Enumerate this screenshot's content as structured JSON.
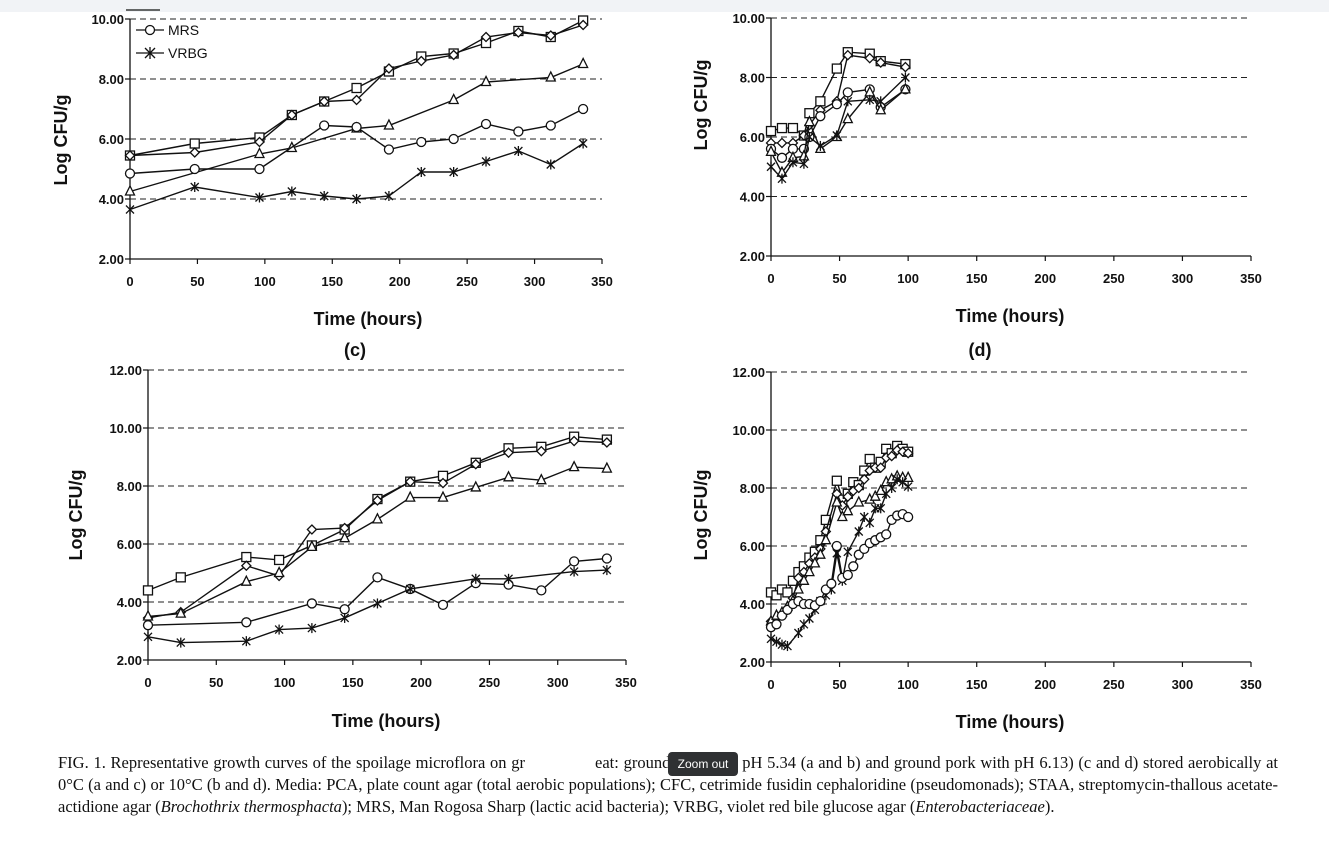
{
  "colors": {
    "line": "#111111",
    "grid": "#222222",
    "tooltip_bg": "#2f3133"
  },
  "chart_data": [
    {
      "id": "b",
      "type": "line",
      "title": "",
      "xlabel": "Time (hours)",
      "ylabel": "Log CFU/g",
      "xlim": [
        0,
        350
      ],
      "ylim": [
        2,
        10
      ],
      "xticks": [
        "0",
        "50",
        "100",
        "150",
        "200",
        "250",
        "300",
        "350"
      ],
      "yticks": [
        "2.00",
        "4.00",
        "6.00",
        "8.00",
        "10.00"
      ],
      "grid": "horizontal-dashed",
      "legend_placement": "top-left",
      "legend_entries": [
        "MRS",
        "VRBG"
      ],
      "series": [
        {
          "marker": "square",
          "x": [
            0,
            48,
            96,
            120,
            144,
            168,
            192,
            216,
            240,
            264,
            288,
            312,
            336
          ],
          "y": [
            5.45,
            5.85,
            6.05,
            6.8,
            7.25,
            7.7,
            8.25,
            8.75,
            8.85,
            9.2,
            9.6,
            9.4,
            9.95
          ]
        },
        {
          "marker": "diamond",
          "x": [
            0,
            48,
            96,
            120,
            144,
            168,
            192,
            216,
            240,
            264,
            288,
            312,
            336
          ],
          "y": [
            5.45,
            5.55,
            5.9,
            6.8,
            7.25,
            7.3,
            8.35,
            8.6,
            8.8,
            9.4,
            9.55,
            9.45,
            9.8
          ]
        },
        {
          "marker": "triangle",
          "x": [
            0,
            96,
            120,
            168,
            192,
            240,
            264,
            312,
            336
          ],
          "y": [
            4.25,
            5.5,
            5.7,
            6.35,
            6.45,
            7.3,
            7.9,
            8.05,
            8.5
          ]
        },
        {
          "name": "MRS",
          "marker": "circle",
          "x": [
            0,
            48,
            96,
            144,
            168,
            192,
            216,
            240,
            264,
            288,
            312,
            336
          ],
          "y": [
            4.85,
            5.0,
            5.0,
            6.45,
            6.4,
            5.65,
            5.9,
            6.0,
            6.5,
            6.25,
            6.45,
            7.0
          ]
        },
        {
          "name": "VRBG",
          "marker": "asterisk",
          "x": [
            0,
            48,
            96,
            120,
            144,
            168,
            192,
            216,
            240,
            264,
            288,
            312,
            336
          ],
          "y": [
            3.65,
            4.4,
            4.05,
            4.25,
            4.1,
            4.0,
            4.1,
            4.9,
            4.9,
            5.25,
            5.6,
            5.15,
            5.85
          ]
        }
      ]
    },
    {
      "id": "b2",
      "type": "line",
      "title": "",
      "xlabel": "Time (hours)",
      "ylabel": "Log CFU/g",
      "xlim": [
        0,
        350
      ],
      "ylim": [
        2,
        10
      ],
      "xticks": [
        "0",
        "50",
        "100",
        "150",
        "200",
        "250",
        "300",
        "350"
      ],
      "yticks": [
        "2.00",
        "4.00",
        "6.00",
        "8.00",
        "10.00"
      ],
      "grid": "horizontal-dashed",
      "series": [
        {
          "marker": "square",
          "x": [
            0,
            8,
            16,
            24,
            28,
            36,
            48,
            56,
            72,
            80,
            98
          ],
          "y": [
            6.2,
            6.3,
            6.3,
            6.05,
            6.8,
            7.2,
            8.3,
            8.85,
            8.8,
            8.55,
            8.45
          ]
        },
        {
          "marker": "diamond",
          "x": [
            0,
            8,
            16,
            24,
            28,
            36,
            48,
            56,
            72,
            80,
            98
          ],
          "y": [
            5.8,
            5.8,
            5.8,
            6.05,
            6.4,
            6.9,
            7.2,
            8.75,
            8.65,
            8.5,
            8.35
          ]
        },
        {
          "marker": "circle",
          "x": [
            0,
            8,
            16,
            24,
            28,
            36,
            48,
            56,
            72,
            80,
            98
          ],
          "y": [
            5.6,
            5.3,
            5.6,
            5.6,
            6.0,
            6.7,
            7.1,
            7.5,
            7.6,
            7.0,
            7.6
          ]
        },
        {
          "marker": "triangle",
          "x": [
            0,
            8,
            16,
            24,
            28,
            36,
            48,
            56,
            72,
            80,
            98
          ],
          "y": [
            5.5,
            4.8,
            5.3,
            5.35,
            6.5,
            5.6,
            6.0,
            6.6,
            7.5,
            6.9,
            7.6
          ]
        },
        {
          "marker": "asterisk",
          "x": [
            0,
            8,
            16,
            24,
            28,
            36,
            48,
            56,
            72,
            80,
            98
          ],
          "y": [
            5.0,
            4.6,
            5.15,
            5.1,
            6.0,
            5.7,
            6.05,
            7.2,
            7.25,
            7.2,
            8.0
          ]
        }
      ]
    },
    {
      "id": "c",
      "type": "line",
      "title": "(c)",
      "xlabel": "Time (hours)",
      "ylabel": "Log CFU/g",
      "xlim": [
        0,
        350
      ],
      "ylim": [
        2,
        12
      ],
      "xticks": [
        "0",
        "50",
        "100",
        "150",
        "200",
        "250",
        "300",
        "350"
      ],
      "yticks": [
        "2.00",
        "4.00",
        "6.00",
        "8.00",
        "10.00",
        "12.00"
      ],
      "grid": "horizontal-dashed",
      "series": [
        {
          "marker": "square",
          "x": [
            0,
            24,
            72,
            96,
            120,
            144,
            168,
            192,
            216,
            240,
            264,
            288,
            312,
            336
          ],
          "y": [
            4.4,
            4.85,
            5.55,
            5.45,
            5.95,
            6.5,
            7.55,
            8.15,
            8.35,
            8.8,
            9.3,
            9.35,
            9.7,
            9.6
          ]
        },
        {
          "marker": "diamond",
          "x": [
            0,
            24,
            72,
            96,
            120,
            144,
            168,
            192,
            216,
            240,
            264,
            288,
            312,
            336
          ],
          "y": [
            3.45,
            3.65,
            5.25,
            4.9,
            6.5,
            6.55,
            7.5,
            8.15,
            8.1,
            8.75,
            9.15,
            9.2,
            9.55,
            9.5
          ]
        },
        {
          "marker": "triangle",
          "x": [
            0,
            24,
            72,
            96,
            120,
            144,
            168,
            192,
            216,
            240,
            264,
            288,
            312,
            336
          ],
          "y": [
            3.5,
            3.6,
            4.7,
            5.0,
            5.9,
            6.2,
            6.85,
            7.6,
            7.6,
            7.95,
            8.3,
            8.2,
            8.65,
            8.6
          ]
        },
        {
          "marker": "circle",
          "x": [
            0,
            72,
            120,
            144,
            168,
            192,
            216,
            240,
            264,
            288,
            312,
            336
          ],
          "y": [
            3.2,
            3.3,
            3.95,
            3.75,
            4.85,
            4.45,
            3.9,
            4.65,
            4.6,
            4.4,
            5.4,
            5.5
          ]
        },
        {
          "marker": "asterisk",
          "x": [
            0,
            24,
            72,
            96,
            120,
            144,
            168,
            192,
            240,
            264,
            312,
            336
          ],
          "y": [
            2.8,
            2.6,
            2.65,
            3.05,
            3.1,
            3.45,
            3.95,
            4.45,
            4.8,
            4.8,
            5.05,
            5.1
          ]
        }
      ]
    },
    {
      "id": "d",
      "type": "line",
      "title": "(d)",
      "xlabel": "Time (hours)",
      "ylabel": "Log CFU/g",
      "xlim": [
        0,
        350
      ],
      "ylim": [
        2,
        12
      ],
      "xticks": [
        "0",
        "50",
        "100",
        "150",
        "200",
        "250",
        "300",
        "350"
      ],
      "yticks": [
        "2.00",
        "4.00",
        "6.00",
        "8.00",
        "10.00",
        "12.00"
      ],
      "grid": "horizontal-dashed",
      "series": [
        {
          "marker": "square",
          "x": [
            0,
            4,
            8,
            12,
            16,
            20,
            24,
            28,
            32,
            36,
            40,
            48,
            52,
            56,
            60,
            64,
            68,
            72,
            76,
            80,
            84,
            88,
            92,
            96,
            100
          ],
          "y": [
            4.4,
            4.3,
            4.5,
            4.4,
            4.8,
            5.1,
            5.3,
            5.6,
            5.8,
            6.2,
            6.9,
            8.25,
            7.6,
            7.8,
            8.2,
            8.1,
            8.6,
            9.0,
            8.7,
            8.9,
            9.35,
            9.2,
            9.45,
            9.35,
            9.25
          ]
        },
        {
          "marker": "diamond",
          "x": [
            0,
            4,
            8,
            12,
            16,
            20,
            24,
            28,
            32,
            36,
            40,
            48,
            52,
            56,
            60,
            64,
            68,
            72,
            76,
            80,
            84,
            88,
            92,
            96,
            100
          ],
          "y": [
            3.4,
            3.5,
            3.6,
            3.8,
            4.2,
            4.9,
            5.1,
            5.4,
            5.6,
            5.9,
            6.5,
            7.8,
            7.4,
            7.7,
            7.9,
            8.0,
            8.3,
            8.6,
            8.7,
            8.7,
            9.05,
            9.1,
            9.3,
            9.25,
            9.2
          ]
        },
        {
          "marker": "triangle",
          "x": [
            0,
            4,
            8,
            12,
            16,
            20,
            24,
            28,
            32,
            36,
            40,
            48,
            52,
            56,
            64,
            72,
            76,
            80,
            84,
            88,
            92,
            96,
            100
          ],
          "y": [
            3.4,
            3.6,
            3.7,
            3.9,
            4.1,
            4.5,
            4.8,
            5.1,
            5.4,
            5.7,
            6.2,
            7.5,
            7.0,
            7.2,
            7.5,
            7.6,
            7.7,
            7.9,
            8.2,
            8.3,
            8.4,
            8.35,
            8.35
          ]
        },
        {
          "marker": "asterisk",
          "x": [
            0,
            4,
            8,
            12,
            20,
            24,
            28,
            32,
            36,
            40,
            44,
            48,
            52,
            56,
            64,
            68,
            72,
            76,
            80,
            84,
            88,
            92,
            96,
            100
          ],
          "y": [
            2.8,
            2.7,
            2.6,
            2.55,
            3.0,
            3.3,
            3.5,
            3.8,
            4.1,
            4.3,
            4.5,
            5.75,
            4.8,
            5.8,
            6.5,
            7.0,
            6.8,
            7.3,
            7.3,
            7.8,
            8.0,
            8.3,
            8.2,
            8.05
          ]
        },
        {
          "marker": "circle",
          "x": [
            0,
            4,
            8,
            12,
            16,
            20,
            24,
            28,
            32,
            36,
            40,
            44,
            48,
            52,
            56,
            60,
            64,
            68,
            72,
            76,
            80,
            84,
            88,
            92,
            96,
            100
          ],
          "y": [
            3.2,
            3.3,
            3.6,
            3.8,
            4.0,
            4.1,
            4.0,
            4.0,
            3.95,
            4.1,
            4.5,
            4.7,
            6.0,
            4.9,
            5.0,
            5.3,
            5.7,
            5.9,
            6.1,
            6.2,
            6.3,
            6.4,
            6.9,
            7.05,
            7.1,
            7.0
          ]
        }
      ]
    }
  ],
  "caption": {
    "p1": "FIG. 1. Representative growth curves of the spoilage microflora on gr",
    "p2": "eat: ground beef with pH 5.34 (a and b) and ground pork with pH 6.13) (c and d) stored aerobically at 0°C (a and c) or 10°C (b and d). Media: PCA, plate count agar (total aerobic populations); CFC, cetrimide fusidin cephaloridine (pseudomonads); STAA, streptomycin-thallous acetate-actidione agar (",
    "i1": "Brochothrix thermosphacta",
    "p3": "); MRS, Man Rogosa Sharp (lactic acid bacteria); VRBG, violet red bile glucose agar (",
    "i2": "Enterobacteriaceae",
    "p4": ")."
  },
  "tooltip": {
    "label": "Zoom out"
  }
}
